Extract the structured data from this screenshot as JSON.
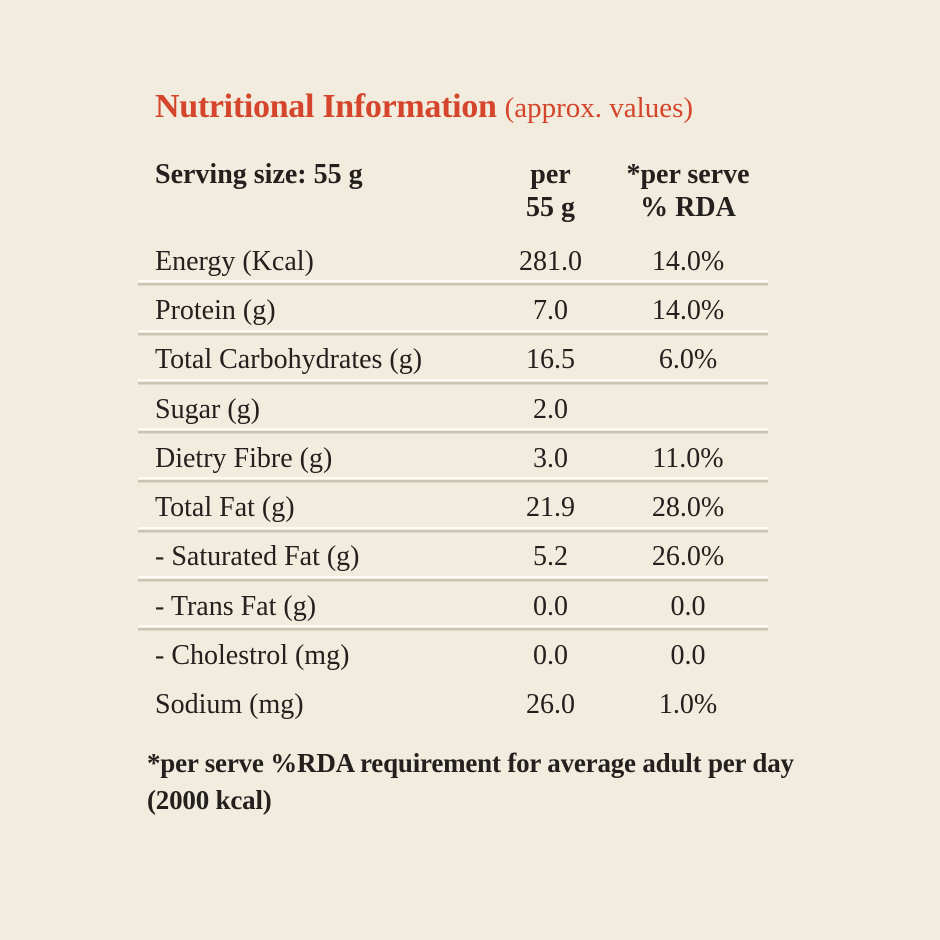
{
  "title": {
    "main": "Nutritional Information",
    "suffix": "(approx. values)"
  },
  "table": {
    "header": {
      "col1": "Serving size: 55 g",
      "col2": [
        "per",
        "55 g"
      ],
      "col3": [
        "*per serve",
        "% RDA"
      ]
    },
    "rows": [
      {
        "label": "Energy (Kcal)",
        "per_serving": "281.0",
        "rda": "14.0%",
        "divider": true
      },
      {
        "label": "Protein (g)",
        "per_serving": "7.0",
        "rda": "14.0%",
        "divider": true
      },
      {
        "label": "Total Carbohydrates (g)",
        "per_serving": "16.5",
        "rda": "6.0%",
        "divider": true
      },
      {
        "label": "Sugar (g)",
        "per_serving": "2.0",
        "rda": "",
        "divider": true
      },
      {
        "label": "Dietry Fibre (g)",
        "per_serving": "3.0",
        "rda": "11.0%",
        "divider": true
      },
      {
        "label": "Total Fat (g)",
        "per_serving": "21.9",
        "rda": "28.0%",
        "divider": true
      },
      {
        "label": "- Saturated Fat (g)",
        "per_serving": "5.2",
        "rda": "26.0%",
        "divider": true
      },
      {
        "label": "- Trans Fat (g)",
        "per_serving": "0.0",
        "rda": "0.0",
        "divider": true
      },
      {
        "label": "- Cholestrol (mg)",
        "per_serving": "0.0",
        "rda": "0.0",
        "divider": false
      },
      {
        "label": "Sodium (mg)",
        "per_serving": "26.0",
        "rda": "1.0%",
        "divider": false
      }
    ]
  },
  "footnote": "*per serve %RDA requirement for average adult per day (2000 kcal)",
  "colors": {
    "background": "#f2ecdf",
    "accent_red": "#d5452b",
    "text": "#23201e",
    "divider_light": "#fdfaf2",
    "divider_dark": "#ccc2b2"
  }
}
